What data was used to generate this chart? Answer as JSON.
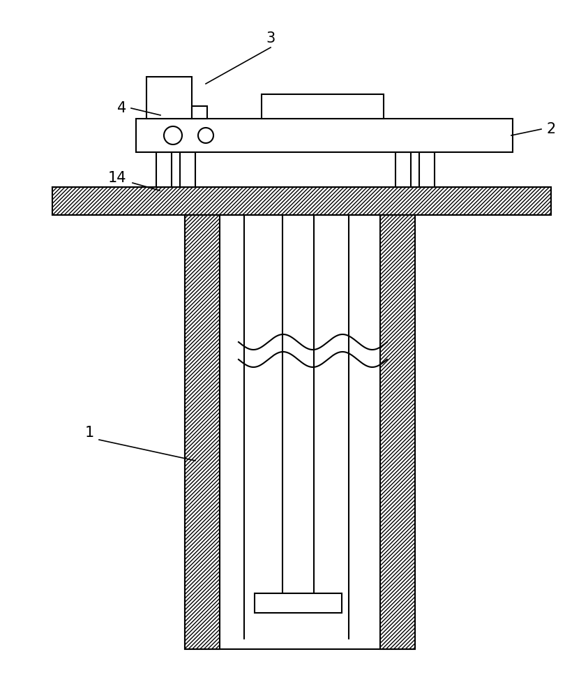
{
  "bg_color": "#ffffff",
  "line_color": "#000000",
  "fig_width": 8.43,
  "fig_height": 10.0,
  "lw": 1.5,
  "label_fontsize": 15
}
